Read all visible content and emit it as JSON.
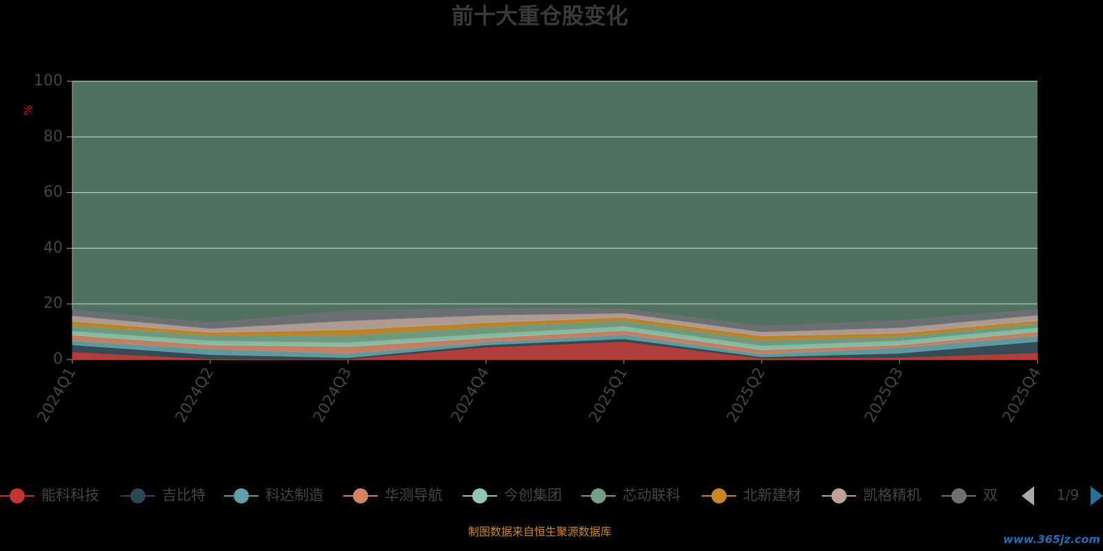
{
  "chart_data": {
    "type": "stacked-area",
    "title": "前十大重仓股变化",
    "y_label": "%",
    "categories": [
      "2024Q1",
      "2024Q2",
      "2024Q3",
      "2024Q4",
      "2025Q1",
      "2025Q2",
      "2025Q3",
      "2025Q4"
    ],
    "ylim": [
      0,
      100
    ],
    "yticks": [
      0,
      20,
      40,
      60,
      80,
      100
    ],
    "grid": true,
    "series": [
      {
        "name": "能科科技",
        "color": "#c23531",
        "values": [
          2.8,
          0.3,
          0.2,
          4.5,
          6.5,
          0.5,
          0.8,
          2.5
        ]
      },
      {
        "name": "吉比特",
        "color": "#2f4554",
        "values": [
          2.5,
          1.5,
          0.5,
          0.8,
          1.0,
          0.5,
          1.5,
          4.0
        ]
      },
      {
        "name": "科达制造",
        "color": "#61a0a8",
        "values": [
          1.5,
          2.0,
          1.5,
          1.0,
          1.5,
          1.0,
          2.0,
          2.0
        ]
      },
      {
        "name": "华测导航",
        "color": "#d48265",
        "values": [
          2.0,
          1.5,
          2.5,
          1.5,
          1.5,
          1.5,
          1.0,
          1.5
        ]
      },
      {
        "name": "今创集团",
        "color": "#91c7ae",
        "values": [
          1.5,
          1.5,
          1.5,
          1.5,
          1.5,
          1.5,
          1.5,
          1.5
        ]
      },
      {
        "name": "芯动联科",
        "color": "#749f83",
        "values": [
          2.0,
          2.0,
          2.5,
          2.5,
          2.0,
          2.0,
          1.5,
          1.5
        ]
      },
      {
        "name": "北新建材",
        "color": "#ca8622",
        "values": [
          1.5,
          1.0,
          2.0,
          1.5,
          1.2,
          1.5,
          1.2,
          1.0
        ]
      },
      {
        "name": "凯格精机",
        "color": "#bda29a",
        "values": [
          2.0,
          1.4,
          3.3,
          2.7,
          1.5,
          1.5,
          2.0,
          2.0
        ]
      },
      {
        "name": "双",
        "color": "#6e7074",
        "values": [
          2.0,
          2.0,
          3.5,
          2.5,
          1.5,
          2.0,
          2.5,
          2.0
        ]
      }
    ],
    "legend_page": "1/9",
    "source": "制图数据来自恒生聚源数据库",
    "watermark": "www.365jz.com"
  }
}
